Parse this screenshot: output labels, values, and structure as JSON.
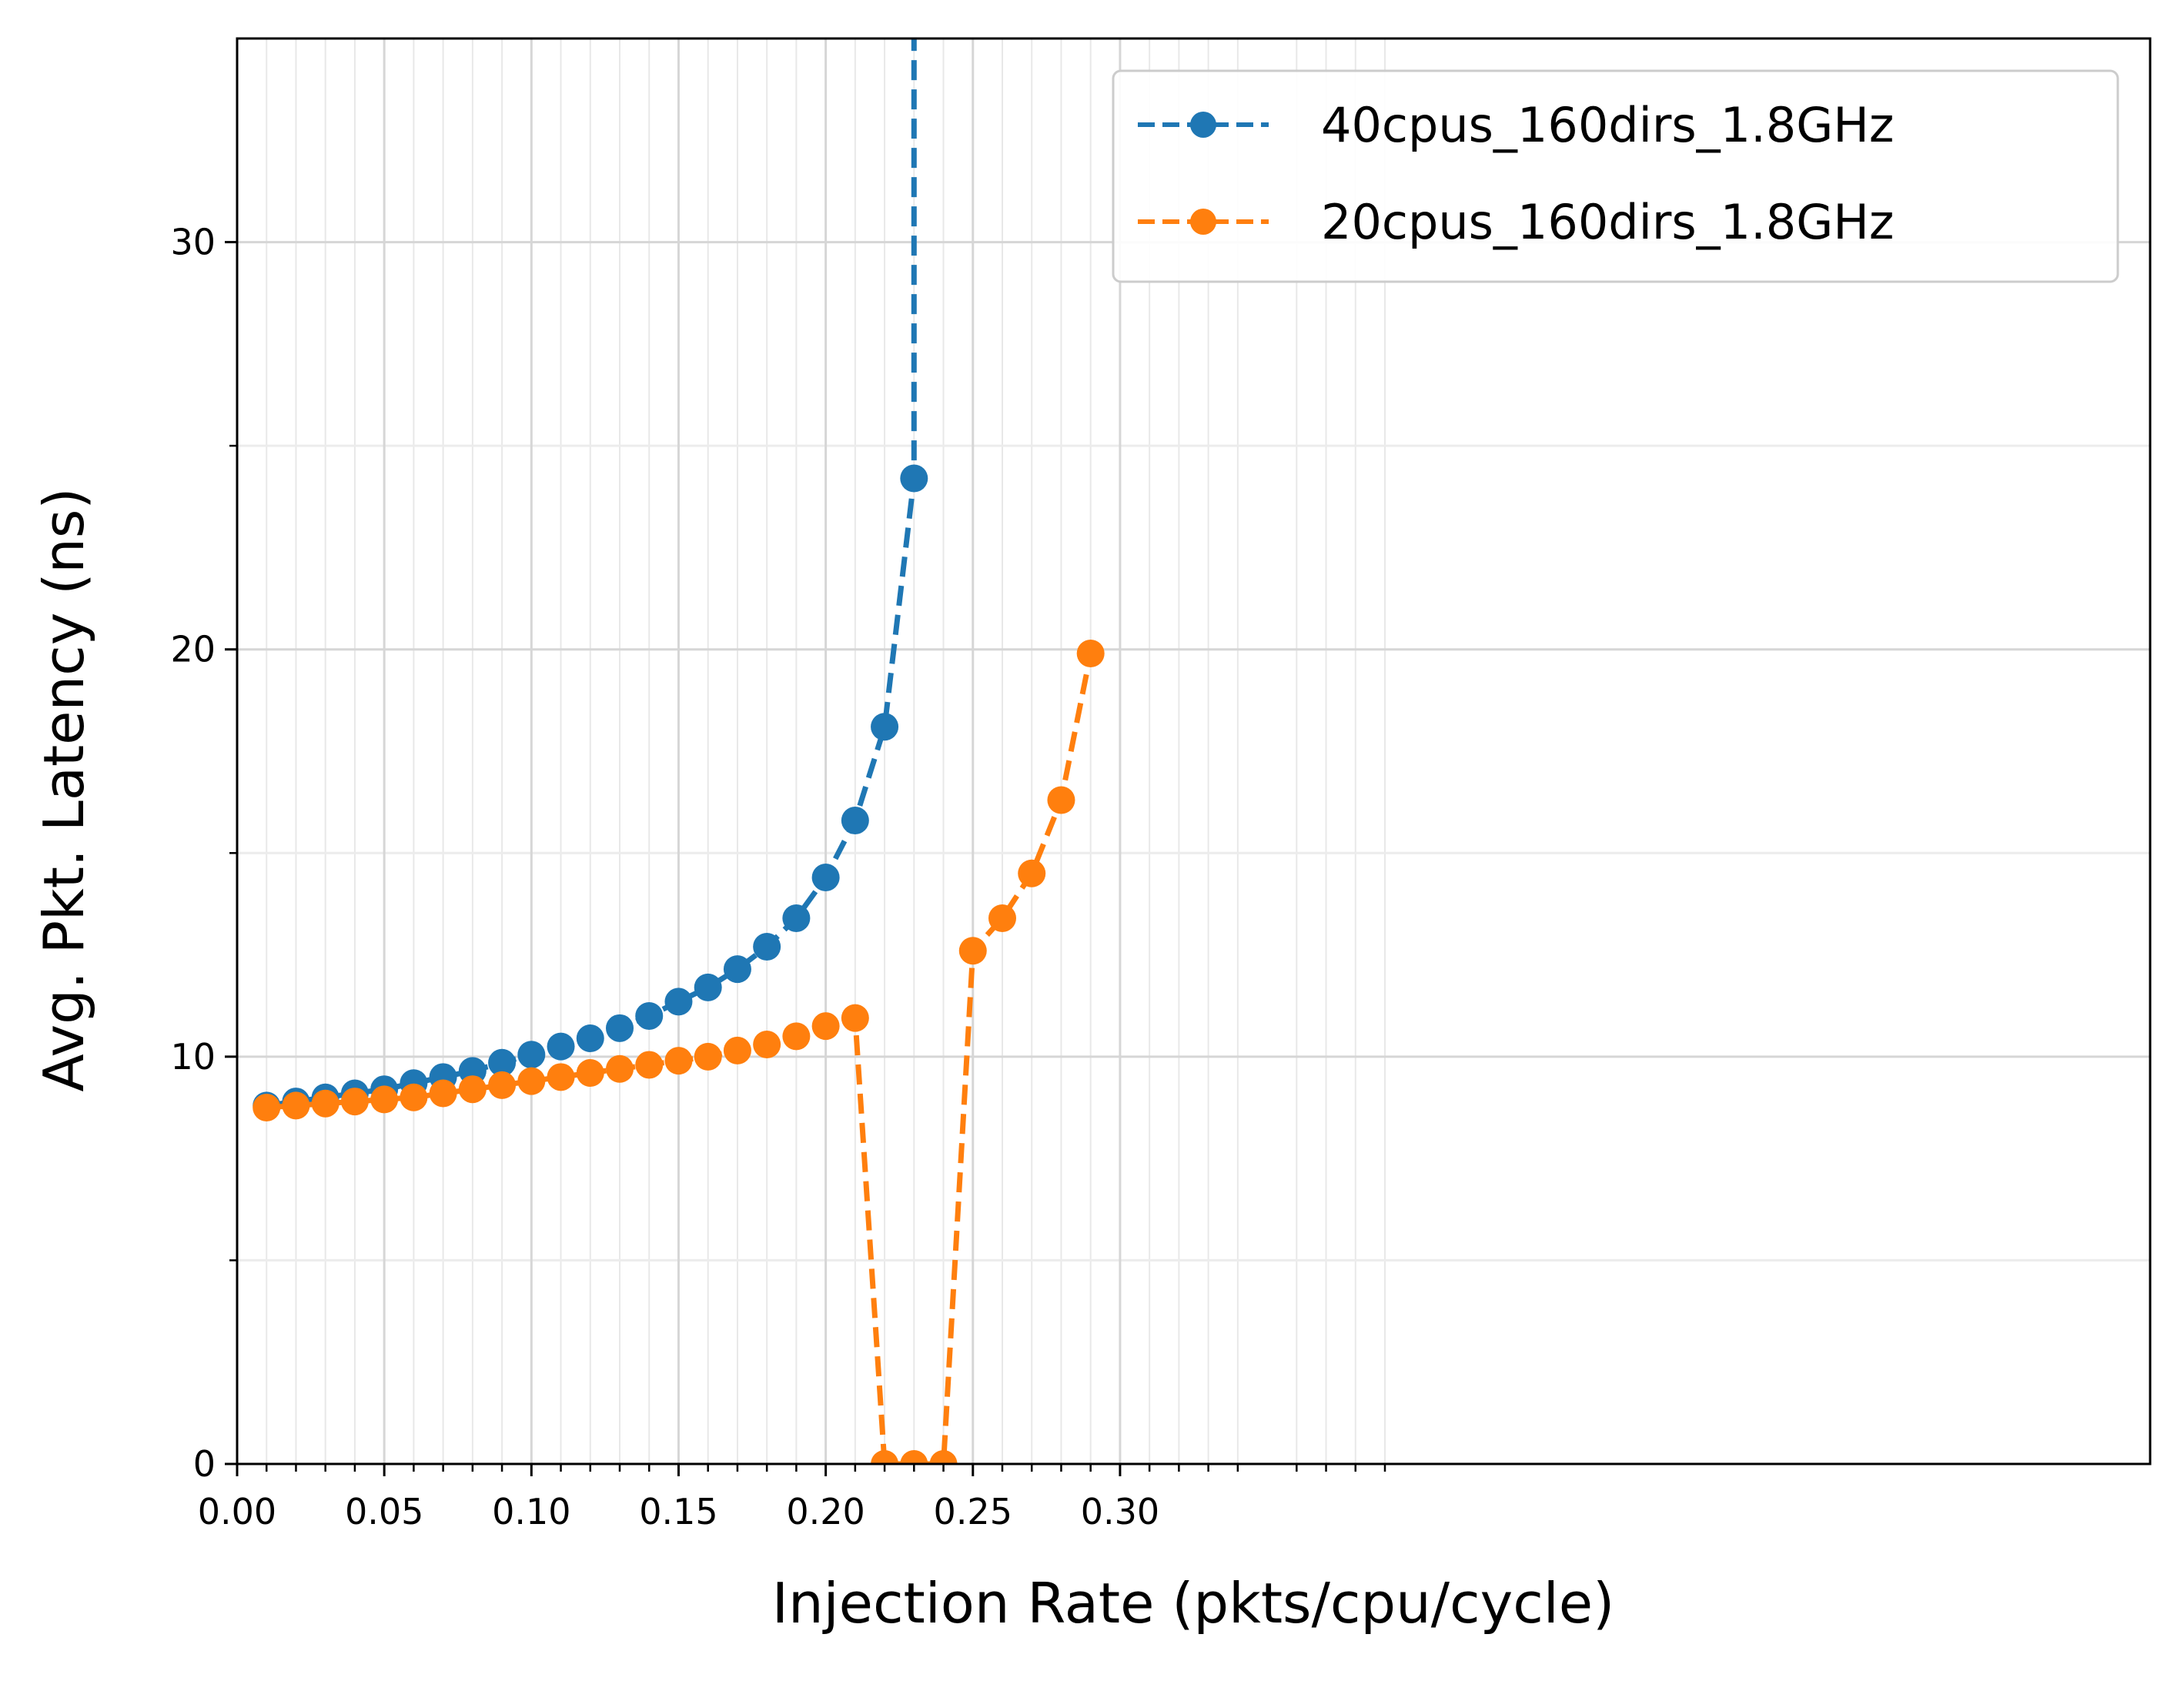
{
  "chart_data": {
    "type": "line",
    "xlabel": "Injection Rate  (pkts/cpu/cycle)",
    "ylabel": "Avg. Pkt. Latency (ns)",
    "xlim": [
      0.0,
      0.65
    ],
    "ylim": [
      0,
      35
    ],
    "x_major_ticks": [
      "0.00",
      "0.05",
      "0.10",
      "0.15",
      "0.20",
      "0.25",
      "0.30"
    ],
    "y_major_ticks": [
      "0",
      "10",
      "20",
      "30"
    ],
    "grid": true,
    "legend_position": "top-right",
    "series": [
      {
        "name": "40cpus_160dirs_1.8GHz",
        "color": "#1f77b4",
        "x": [
          0.01,
          0.02,
          0.03,
          0.04,
          0.05,
          0.06,
          0.07,
          0.08,
          0.09,
          0.1,
          0.11,
          0.12,
          0.13,
          0.14,
          0.15,
          0.16,
          0.17,
          0.18,
          0.19,
          0.2,
          0.21,
          0.22,
          0.23,
          0.23
        ],
        "y": [
          8.8,
          8.9,
          9.0,
          9.1,
          9.2,
          9.35,
          9.5,
          9.65,
          9.85,
          10.05,
          10.25,
          10.45,
          10.7,
          11.0,
          11.35,
          11.7,
          12.15,
          12.7,
          13.4,
          14.4,
          15.8,
          18.1,
          24.2,
          40
        ]
      },
      {
        "name": "20cpus_160dirs_1.8GHz",
        "color": "#ff7f0e",
        "x": [
          0.01,
          0.02,
          0.03,
          0.04,
          0.05,
          0.06,
          0.07,
          0.08,
          0.09,
          0.1,
          0.11,
          0.12,
          0.13,
          0.14,
          0.15,
          0.16,
          0.17,
          0.18,
          0.19,
          0.2,
          0.21,
          0.22,
          0.23,
          0.24,
          0.25,
          0.26,
          0.27,
          0.28,
          0.29
        ],
        "y": [
          8.75,
          8.8,
          8.85,
          8.9,
          8.95,
          9.0,
          9.1,
          9.2,
          9.3,
          9.4,
          9.5,
          9.6,
          9.7,
          9.8,
          9.9,
          10.0,
          10.15,
          10.3,
          10.5,
          10.75,
          10.95,
          0.0,
          0.0,
          0.0,
          12.6,
          13.4,
          14.5,
          16.3,
          19.9
        ]
      }
    ]
  }
}
